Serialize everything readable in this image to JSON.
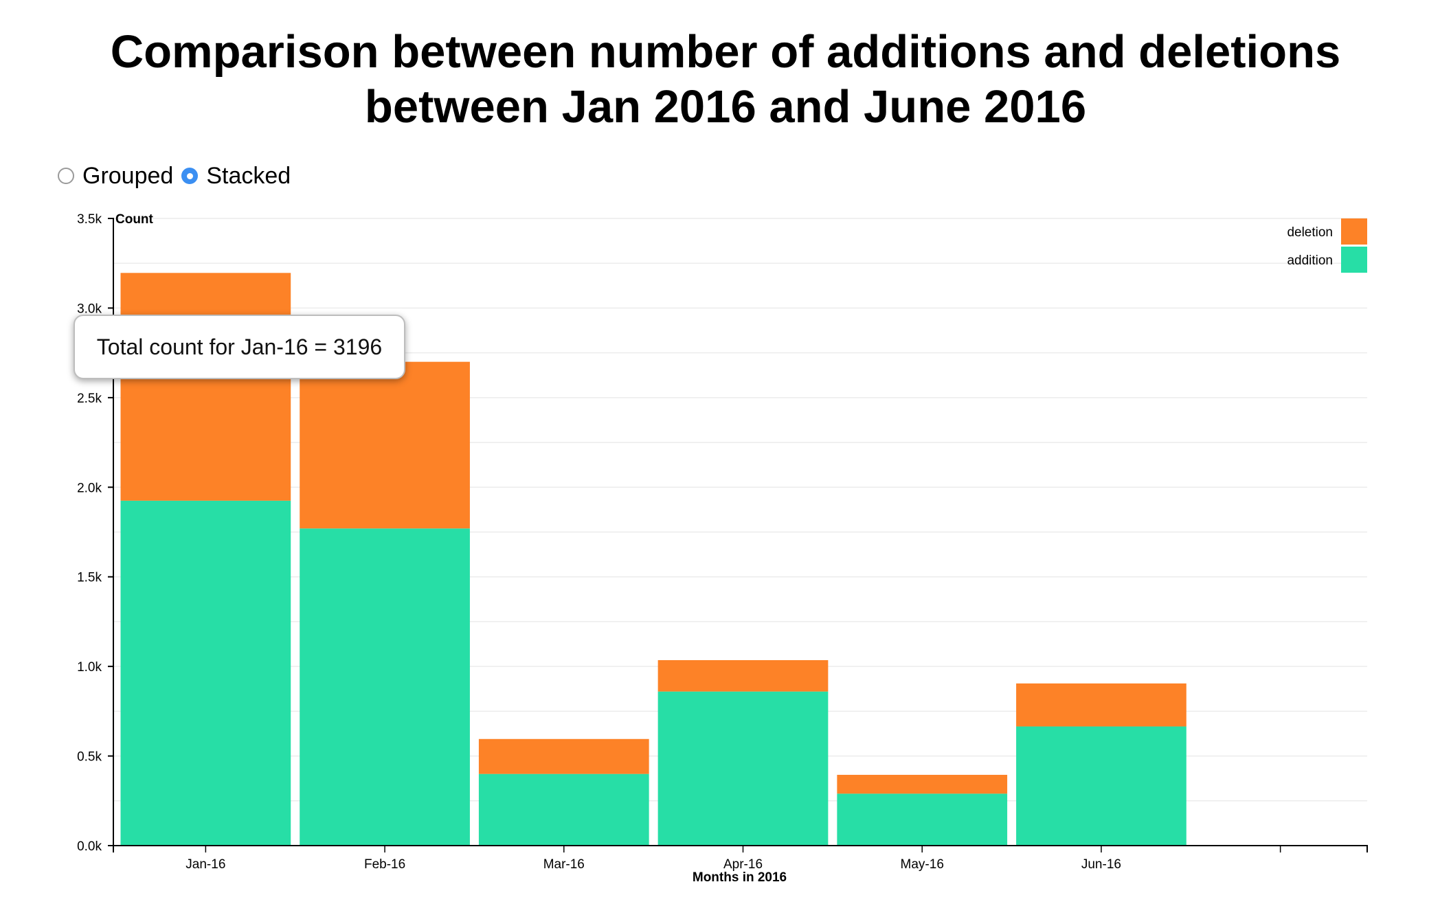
{
  "title": {
    "line1": "Comparison between number of additions and deletions",
    "line2": "between Jan 2016 and June 2016"
  },
  "controls": {
    "options": [
      {
        "label": "Grouped",
        "checked": false
      },
      {
        "label": "Stacked",
        "checked": true
      }
    ]
  },
  "tooltip": {
    "text": "Total count for Jan-16 = 3196"
  },
  "chart_data": {
    "type": "bar",
    "stacked": true,
    "categories": [
      "Jan-16",
      "Feb-16",
      "Mar-16",
      "Apr-16",
      "May-16",
      "Jun-16"
    ],
    "series": [
      {
        "name": "addition",
        "color": "#27dea6",
        "values": [
          1925,
          1770,
          400,
          860,
          290,
          665
        ]
      },
      {
        "name": "deletion",
        "color": "#fd8227",
        "values": [
          1271,
          930,
          195,
          175,
          105,
          240
        ]
      }
    ],
    "xlabel": "Months in 2016",
    "ylabel": "Count",
    "ylim": [
      0,
      3500
    ],
    "yticks": [
      {
        "value": 0,
        "label": "0.0k"
      },
      {
        "value": 500,
        "label": "0.5k"
      },
      {
        "value": 1000,
        "label": "1.0k"
      },
      {
        "value": 1500,
        "label": "1.5k"
      },
      {
        "value": 2000,
        "label": "2.0k"
      },
      {
        "value": 2500,
        "label": "2.5k"
      },
      {
        "value": 3000,
        "label": "3.0k"
      },
      {
        "value": 3500,
        "label": "3.5k"
      }
    ],
    "grid": true,
    "legend": {
      "position": "top-right",
      "entries": [
        {
          "label": "deletion",
          "color": "#fd8227"
        },
        {
          "label": "addition",
          "color": "#27dea6"
        }
      ]
    }
  }
}
